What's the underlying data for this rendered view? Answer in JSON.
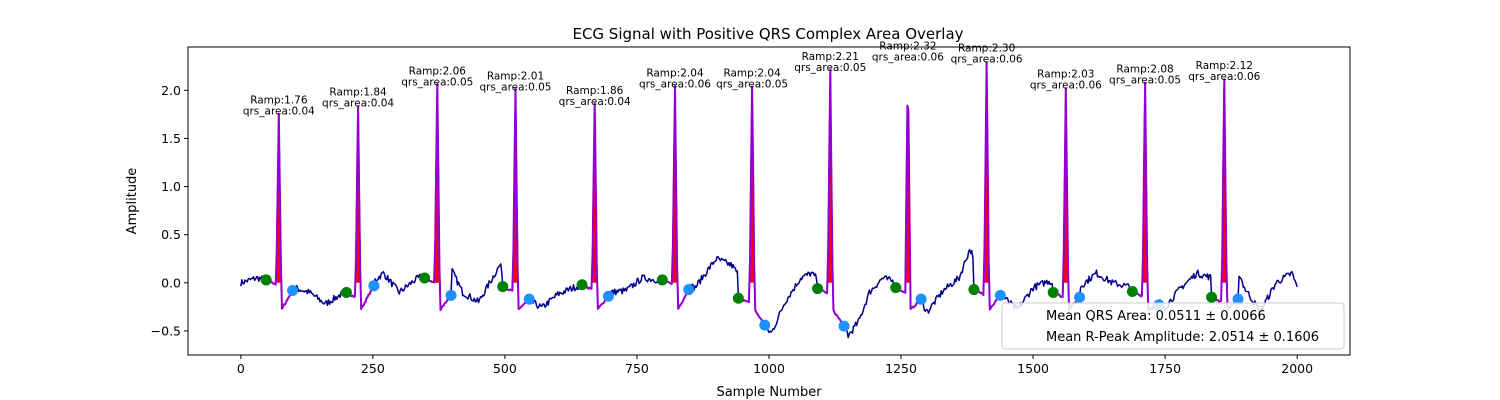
{
  "chart_data": {
    "type": "line",
    "title": "ECG Signal with Positive QRS Complex Area Overlay",
    "xlabel": "Sample Number",
    "ylabel": "Amplitude",
    "xlim": [
      -100,
      2100
    ],
    "ylim": [
      -0.75,
      2.45
    ],
    "xticks": [
      0,
      250,
      500,
      750,
      1000,
      1250,
      1500,
      1750,
      2000
    ],
    "yticks": [
      -0.5,
      0.0,
      0.5,
      1.0,
      1.5,
      2.0
    ],
    "xtick_labels": [
      "0",
      "250",
      "500",
      "750",
      "1000",
      "1250",
      "1500",
      "1750",
      "2000"
    ],
    "ytick_labels": [
      "−0.5",
      "0.0",
      "0.5",
      "1.0",
      "1.5",
      "2.0"
    ],
    "colors": {
      "signal": "#00008b",
      "qrs_segment": "#9400d3",
      "qrs_fill": "#ff0000",
      "q_points": "#008000",
      "s_points": "#1e90ff"
    },
    "beats": [
      {
        "r_x": 72,
        "r_amp": 1.76,
        "qrs_area": 0.04,
        "q_x": 48,
        "q_y": 0.03,
        "s_x": 98,
        "s_y": -0.08,
        "ramp_label": "Ramp:1.76",
        "area_label": "qrs_area:0.04"
      },
      {
        "r_x": 222,
        "r_amp": 1.84,
        "qrs_area": 0.04,
        "q_x": 200,
        "q_y": -0.1,
        "s_x": 252,
        "s_y": -0.03,
        "ramp_label": "Ramp:1.84",
        "area_label": "qrs_area:0.04"
      },
      {
        "r_x": 372,
        "r_amp": 2.06,
        "qrs_area": 0.05,
        "q_x": 348,
        "q_y": 0.05,
        "s_x": 398,
        "s_y": -0.13,
        "ramp_label": "Ramp:2.06",
        "area_label": "qrs_area:0.05"
      },
      {
        "r_x": 520,
        "r_amp": 2.01,
        "qrs_area": 0.05,
        "q_x": 496,
        "q_y": -0.04,
        "s_x": 546,
        "s_y": -0.17,
        "ramp_label": "Ramp:2.01",
        "area_label": "qrs_area:0.05"
      },
      {
        "r_x": 670,
        "r_amp": 1.86,
        "qrs_area": 0.04,
        "q_x": 646,
        "q_y": -0.02,
        "s_x": 696,
        "s_y": -0.14,
        "ramp_label": "Ramp:1.86",
        "area_label": "qrs_area:0.04"
      },
      {
        "r_x": 822,
        "r_amp": 2.04,
        "qrs_area": 0.06,
        "q_x": 798,
        "q_y": 0.03,
        "s_x": 848,
        "s_y": -0.07,
        "ramp_label": "Ramp:2.04",
        "area_label": "qrs_area:0.06"
      },
      {
        "r_x": 968,
        "r_amp": 2.04,
        "qrs_area": 0.05,
        "q_x": 942,
        "q_y": -0.16,
        "s_x": 992,
        "s_y": -0.44,
        "ramp_label": "Ramp:2.04",
        "area_label": "qrs_area:0.05"
      },
      {
        "r_x": 1116,
        "r_amp": 2.21,
        "qrs_area": 0.05,
        "q_x": 1092,
        "q_y": -0.06,
        "s_x": 1142,
        "s_y": -0.45,
        "ramp_label": "Ramp:2.21",
        "area_label": "qrs_area:0.05"
      },
      {
        "r_x": 1263,
        "r_amp": 2.32,
        "qrs_area": 0.06,
        "q_x": 1240,
        "q_y": -0.05,
        "s_x": 1288,
        "s_y": -0.17,
        "ramp_label": "Ramp:2.32",
        "area_label": "qrs_area:0.06"
      },
      {
        "r_x": 1412,
        "r_amp": 2.3,
        "qrs_area": 0.06,
        "q_x": 1388,
        "q_y": -0.07,
        "s_x": 1438,
        "s_y": -0.13,
        "ramp_label": "Ramp:2.30",
        "area_label": "qrs_area:0.06"
      },
      {
        "r_x": 1562,
        "r_amp": 2.03,
        "qrs_area": 0.06,
        "q_x": 1538,
        "q_y": -0.1,
        "s_x": 1588,
        "s_y": -0.15,
        "ramp_label": "Ramp:2.03",
        "area_label": "qrs_area:0.06"
      },
      {
        "r_x": 1712,
        "r_amp": 2.08,
        "qrs_area": 0.05,
        "q_x": 1688,
        "q_y": -0.09,
        "s_x": 1738,
        "s_y": -0.23,
        "ramp_label": "Ramp:2.08",
        "area_label": "qrs_area:0.05"
      },
      {
        "r_x": 1862,
        "r_amp": 2.12,
        "qrs_area": 0.06,
        "q_x": 1838,
        "q_y": -0.15,
        "s_x": 1888,
        "s_y": -0.17,
        "ramp_label": "Ramp:2.12",
        "area_label": "qrs_area:0.06"
      }
    ],
    "baseline": [
      [
        0,
        0.0
      ],
      [
        30,
        0.05
      ],
      [
        60,
        0.02
      ],
      [
        100,
        -0.05
      ],
      [
        130,
        -0.1
      ],
      [
        160,
        -0.22
      ],
      [
        190,
        -0.12
      ],
      [
        230,
        -0.08
      ],
      [
        270,
        0.1
      ],
      [
        300,
        -0.1
      ],
      [
        330,
        0.03
      ],
      [
        360,
        0.12
      ],
      [
        395,
        0.18
      ],
      [
        420,
        -0.1
      ],
      [
        450,
        -0.2
      ],
      [
        490,
        0.18
      ],
      [
        510,
        0.0
      ],
      [
        545,
        -0.18
      ],
      [
        570,
        -0.26
      ],
      [
        600,
        -0.12
      ],
      [
        630,
        -0.05
      ],
      [
        660,
        0.0
      ],
      [
        700,
        -0.1
      ],
      [
        730,
        -0.08
      ],
      [
        760,
        0.05
      ],
      [
        790,
        0.03
      ],
      [
        830,
        0.0
      ],
      [
        860,
        -0.05
      ],
      [
        900,
        0.25
      ],
      [
        930,
        0.18
      ],
      [
        960,
        -0.05
      ],
      [
        985,
        -0.45
      ],
      [
        1005,
        -0.52
      ],
      [
        1030,
        -0.2
      ],
      [
        1060,
        0.05
      ],
      [
        1080,
        0.1
      ],
      [
        1100,
        0.0
      ],
      [
        1130,
        -0.2
      ],
      [
        1150,
        -0.55
      ],
      [
        1170,
        -0.4
      ],
      [
        1190,
        -0.1
      ],
      [
        1215,
        0.05
      ],
      [
        1245,
        0.0
      ],
      [
        1275,
        -0.1
      ],
      [
        1300,
        -0.3
      ],
      [
        1330,
        -0.08
      ],
      [
        1360,
        0.05
      ],
      [
        1380,
        0.35
      ],
      [
        1395,
        0.2
      ],
      [
        1420,
        0.0
      ],
      [
        1450,
        -0.18
      ],
      [
        1470,
        -0.28
      ],
      [
        1500,
        -0.05
      ],
      [
        1530,
        0.02
      ],
      [
        1550,
        -0.05
      ],
      [
        1580,
        -0.08
      ],
      [
        1620,
        0.1
      ],
      [
        1650,
        0.0
      ],
      [
        1690,
        -0.05
      ],
      [
        1720,
        -0.1
      ],
      [
        1750,
        -0.25
      ],
      [
        1780,
        -0.05
      ],
      [
        1810,
        0.1
      ],
      [
        1840,
        0.05
      ],
      [
        1880,
        0.25
      ],
      [
        1900,
        -0.05
      ],
      [
        1930,
        -0.3
      ],
      [
        1960,
        0.0
      ],
      [
        1990,
        0.1
      ],
      [
        2000,
        -0.05
      ]
    ],
    "legend": {
      "location": "lower right",
      "entries": [
        "Mean QRS Area: 0.0511 ± 0.0066",
        "Mean R-Peak Amplitude: 2.0514 ± 0.1606"
      ]
    }
  }
}
